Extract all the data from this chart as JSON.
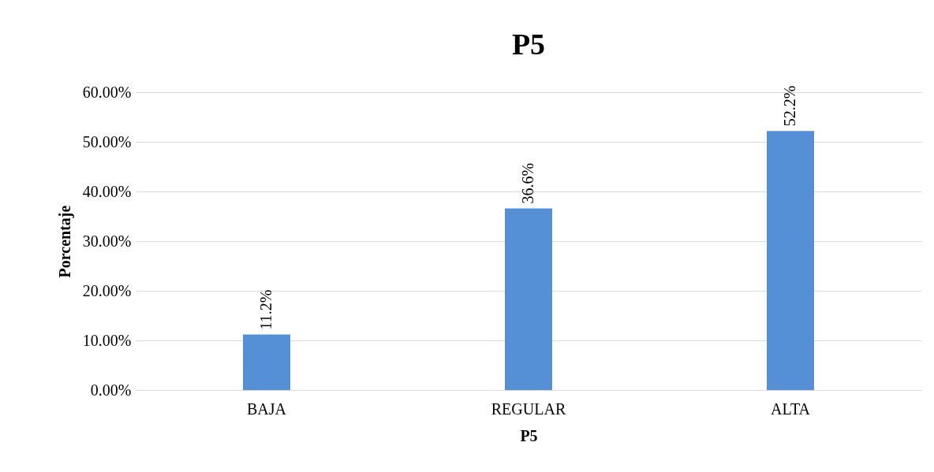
{
  "chart_data": {
    "type": "bar",
    "title": "P5",
    "xlabel": "P5",
    "ylabel": "Porcentaje",
    "categories": [
      "BAJA",
      "REGULAR",
      "ALTA"
    ],
    "values": [
      11.2,
      36.6,
      52.2
    ],
    "value_labels": [
      "11.2%",
      "36.6%",
      "52.2%"
    ],
    "color": "#558fd6",
    "ylim": [
      0,
      60
    ],
    "yticks": [
      {
        "value": 0,
        "label": "0.00%"
      },
      {
        "value": 10,
        "label": "10.00%"
      },
      {
        "value": 20,
        "label": "20.00%"
      },
      {
        "value": 30,
        "label": "30.00%"
      },
      {
        "value": 40,
        "label": "40.00%"
      },
      {
        "value": 50,
        "label": "50.00%"
      },
      {
        "value": 60,
        "label": "60.00%"
      }
    ],
    "grid": "y"
  }
}
